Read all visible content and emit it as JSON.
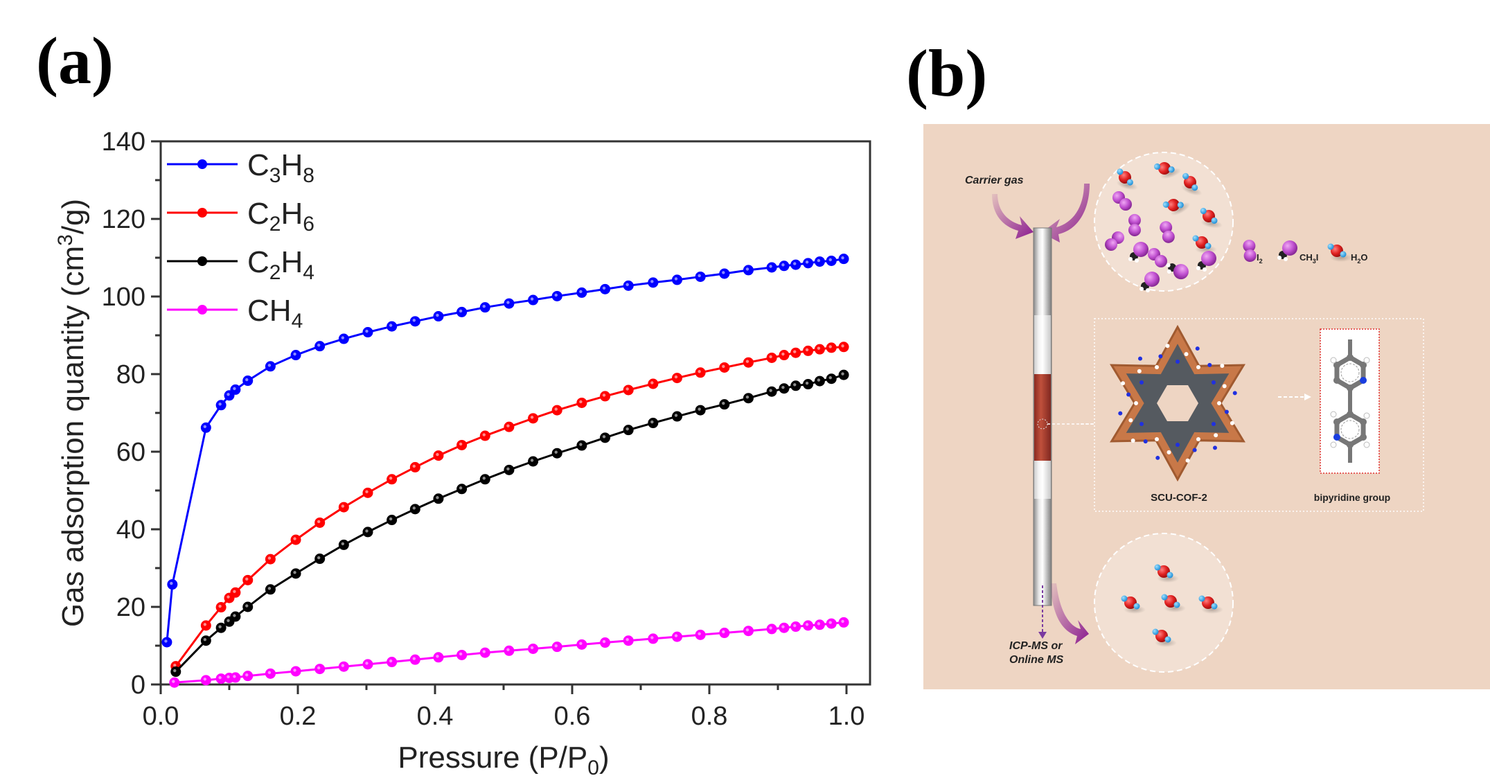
{
  "panels": {
    "a_label": "(a)",
    "b_label": "(b)"
  },
  "chart_data": {
    "type": "line",
    "title": "",
    "xlabel": "Pressure (P/P0)",
    "xlabel_main": "Pressure (P/P",
    "xlabel_sub": "0",
    "xlabel_close": ")",
    "ylabel": "Gas adsorption quantity (cm3/g)",
    "ylabel_main": "Gas adsorption quantity (cm",
    "ylabel_sup": "3",
    "ylabel_close": "/g)",
    "xlim": [
      0.0,
      1.03
    ],
    "ylim": [
      0,
      140
    ],
    "xticks": [
      0.0,
      0.2,
      0.4,
      0.6,
      0.8,
      1.0
    ],
    "xtick_labels": [
      "0.0",
      "0.2",
      "0.4",
      "0.6",
      "0.8",
      "1.0"
    ],
    "yticks": [
      0,
      20,
      40,
      60,
      80,
      100,
      120,
      140
    ],
    "ytick_labels": [
      "0",
      "20",
      "40",
      "60",
      "80",
      "100",
      "120",
      "140"
    ],
    "grid": false,
    "legend_position": "top-left",
    "series": [
      {
        "name": "C3H8",
        "label_parts": [
          [
            "C",
            ""
          ],
          [
            "3",
            "sub"
          ],
          [
            "H",
            ""
          ],
          [
            "8",
            "sub"
          ]
        ],
        "color": "#0000ff",
        "x": [
          0.009,
          0.017,
          0.066,
          0.088,
          0.1,
          0.109,
          0.127,
          0.16,
          0.197,
          0.232,
          0.267,
          0.302,
          0.337,
          0.371,
          0.405,
          0.439,
          0.473,
          0.508,
          0.543,
          0.578,
          0.614,
          0.648,
          0.682,
          0.718,
          0.753,
          0.787,
          0.822,
          0.857,
          0.891,
          0.909,
          0.926,
          0.944,
          0.961,
          0.978,
          0.996
        ],
        "y": [
          10.9,
          25.8,
          66.2,
          72.0,
          74.5,
          76.0,
          78.3,
          82.0,
          84.9,
          87.2,
          89.1,
          90.8,
          92.3,
          93.6,
          94.9,
          96.0,
          97.2,
          98.2,
          99.1,
          100.1,
          101.0,
          101.9,
          102.8,
          103.6,
          104.3,
          105.1,
          105.9,
          106.8,
          107.5,
          107.9,
          108.2,
          108.6,
          109.0,
          109.2,
          109.7
        ]
      },
      {
        "name": "C2H6",
        "label_parts": [
          [
            "C",
            ""
          ],
          [
            "2",
            "sub"
          ],
          [
            "H",
            ""
          ],
          [
            "6",
            "sub"
          ]
        ],
        "color": "#ff0000",
        "x": [
          0.022,
          0.066,
          0.088,
          0.1,
          0.109,
          0.127,
          0.16,
          0.197,
          0.232,
          0.267,
          0.302,
          0.337,
          0.371,
          0.405,
          0.439,
          0.473,
          0.508,
          0.543,
          0.578,
          0.614,
          0.648,
          0.682,
          0.718,
          0.753,
          0.787,
          0.822,
          0.857,
          0.891,
          0.909,
          0.926,
          0.944,
          0.961,
          0.978,
          0.996
        ],
        "y": [
          4.7,
          15.2,
          19.9,
          22.3,
          23.7,
          26.9,
          32.3,
          37.3,
          41.7,
          45.7,
          49.4,
          52.9,
          56.0,
          59.0,
          61.7,
          64.1,
          66.4,
          68.6,
          70.7,
          72.6,
          74.3,
          75.9,
          77.5,
          79.0,
          80.4,
          81.7,
          83.0,
          84.2,
          84.9,
          85.5,
          86.0,
          86.4,
          86.8,
          87.0
        ]
      },
      {
        "name": "C2H4",
        "label_parts": [
          [
            "C",
            ""
          ],
          [
            "2",
            "sub"
          ],
          [
            "H",
            ""
          ],
          [
            "4",
            "sub"
          ]
        ],
        "color": "#000000",
        "x": [
          0.022,
          0.066,
          0.088,
          0.1,
          0.109,
          0.127,
          0.16,
          0.197,
          0.232,
          0.267,
          0.302,
          0.337,
          0.371,
          0.405,
          0.439,
          0.473,
          0.508,
          0.543,
          0.578,
          0.614,
          0.648,
          0.682,
          0.718,
          0.753,
          0.787,
          0.822,
          0.857,
          0.891,
          0.909,
          0.926,
          0.944,
          0.961,
          0.978,
          0.996
        ],
        "y": [
          3.3,
          11.3,
          14.6,
          16.2,
          17.5,
          20.0,
          24.5,
          28.6,
          32.4,
          36.0,
          39.3,
          42.4,
          45.2,
          47.9,
          50.4,
          52.9,
          55.3,
          57.5,
          59.6,
          61.6,
          63.6,
          65.6,
          67.4,
          69.1,
          70.7,
          72.2,
          73.8,
          75.5,
          76.3,
          77.0,
          77.4,
          78.2,
          78.8,
          79.8
        ]
      },
      {
        "name": "CH4",
        "label_parts": [
          [
            "CH",
            ""
          ],
          [
            "4",
            "sub"
          ]
        ],
        "color": "#ff00ff",
        "x": [
          0.02,
          0.066,
          0.088,
          0.1,
          0.109,
          0.127,
          0.16,
          0.197,
          0.232,
          0.267,
          0.302,
          0.337,
          0.371,
          0.405,
          0.439,
          0.473,
          0.508,
          0.543,
          0.578,
          0.614,
          0.648,
          0.682,
          0.718,
          0.753,
          0.787,
          0.822,
          0.857,
          0.891,
          0.909,
          0.926,
          0.944,
          0.961,
          0.978,
          0.996
        ],
        "y": [
          0.5,
          1.1,
          1.5,
          1.7,
          1.8,
          2.2,
          2.8,
          3.4,
          4.0,
          4.6,
          5.2,
          5.8,
          6.4,
          7.0,
          7.6,
          8.2,
          8.7,
          9.2,
          9.7,
          10.3,
          10.8,
          11.3,
          11.8,
          12.3,
          12.8,
          13.3,
          13.8,
          14.3,
          14.6,
          14.9,
          15.2,
          15.4,
          15.7,
          16.0
        ]
      }
    ]
  },
  "diagram": {
    "background_color": "#eed5c3",
    "carrier_gas_label": "Carrier gas",
    "outlet_label_line1": "ICP-MS or",
    "outlet_label_line2": "Online MS",
    "legend_i2": "I",
    "legend_i2_sub": "2",
    "legend_ch3i_a": "CH",
    "legend_ch3i_sub": "3",
    "legend_ch3i_b": "I",
    "legend_h2o_a": "H",
    "legend_h2o_sub": "2",
    "legend_h2o_b": "O",
    "cof_label": "SCU-COF-2",
    "bipyridine_label": "bipyridine group",
    "colors": {
      "iodine": "#c050d0",
      "oxygen": "#e02020",
      "hydrogen": "#30a0e0",
      "carbon_cof": "#c87848",
      "nitrogen": "#2030e0",
      "column_packing": "#b04030",
      "arrow": "#8a1a90"
    }
  }
}
